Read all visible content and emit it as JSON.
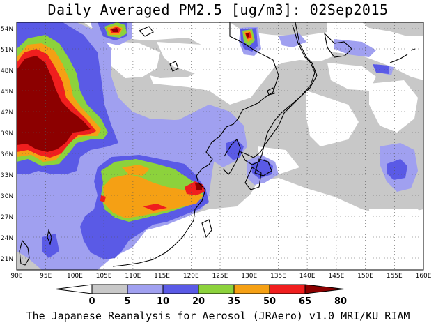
{
  "title": "Daily Averaged PM2.5 [ug/m3]: 02Sep2015",
  "footer": "The Japanese Reanalysis for Aerosol (JRAero) v1.0 MRI/KU_RIAM",
  "map": {
    "lon_range": [
      90,
      160
    ],
    "lat_range": [
      19.7,
      55.4
    ],
    "lat_labels": [
      "54N",
      "51N",
      "48N",
      "45N",
      "42N",
      "39N",
      "36N",
      "33N",
      "30N",
      "27N",
      "24N",
      "21N"
    ],
    "lon_labels": [
      "90E",
      "95E",
      "100E",
      "105E",
      "110E",
      "115E",
      "120E",
      "125E",
      "130E",
      "135E",
      "140E",
      "145E",
      "150E",
      "155E",
      "160E"
    ]
  },
  "colorbar": {
    "levels": [
      "0",
      "5",
      "10",
      "20",
      "35",
      "50",
      "65",
      "80"
    ],
    "colors": [
      "#ffffff",
      "#c8c8c8",
      "#a0a0f0",
      "#5a5ae6",
      "#8cd23c",
      "#f5a014",
      "#f01e1e",
      "#8c0000"
    ]
  },
  "colors": {
    "c1": "#c8c8c8",
    "c2": "#a0a0f0",
    "c3": "#5a5ae6",
    "c4": "#8cd23c",
    "c5": "#f5a014",
    "c6": "#f01e1e",
    "c7": "#8c0000"
  }
}
